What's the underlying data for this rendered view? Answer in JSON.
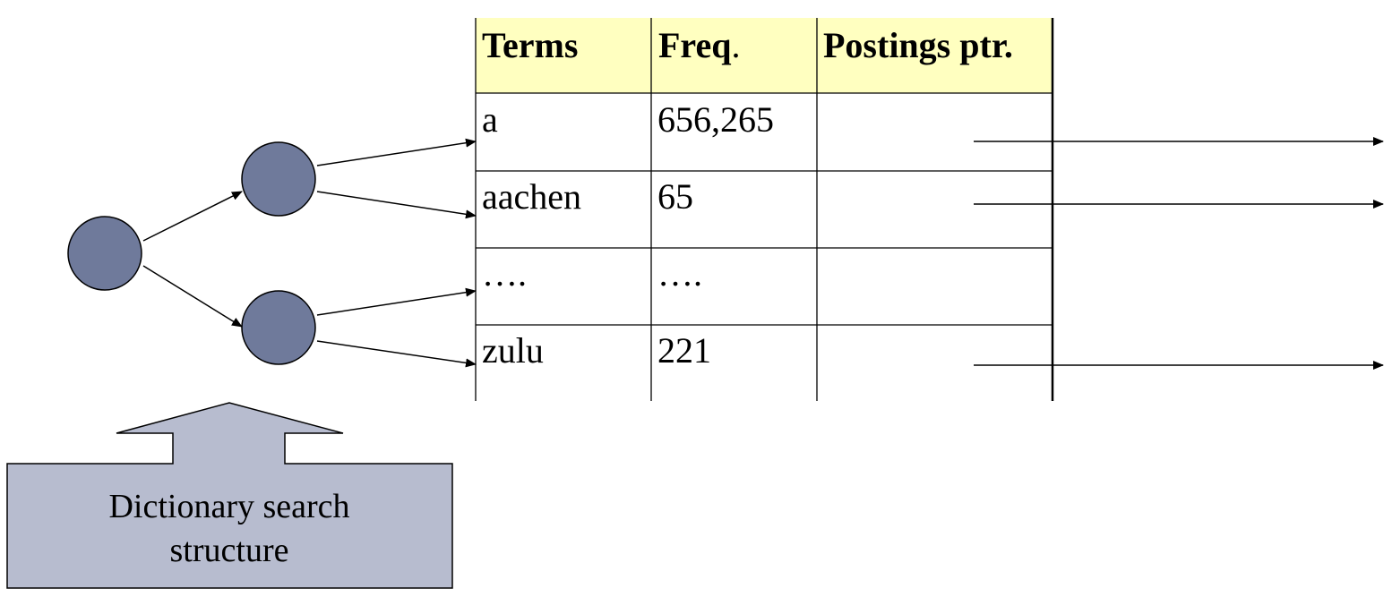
{
  "colors": {
    "header_fill": "#ffffc0",
    "node_fill": "#6f7a9b",
    "callout_fill": "#b7bccf",
    "line": "#000000"
  },
  "table": {
    "headers": [
      {
        "bold": "Terms",
        "plain": ""
      },
      {
        "bold": "Freq",
        "plain": "."
      },
      {
        "bold": "Postings ptr.",
        "plain": ""
      }
    ],
    "rows": [
      {
        "term": "a",
        "freq": "656,265",
        "has_pointer": true
      },
      {
        "term": "aachen",
        "freq": "65",
        "has_pointer": true
      },
      {
        "term": "….",
        "freq": "….",
        "has_pointer": false
      },
      {
        "term": "zulu",
        "freq": "221",
        "has_pointer": true
      }
    ]
  },
  "callout": {
    "line1": "Dictionary search",
    "line2": "structure"
  }
}
